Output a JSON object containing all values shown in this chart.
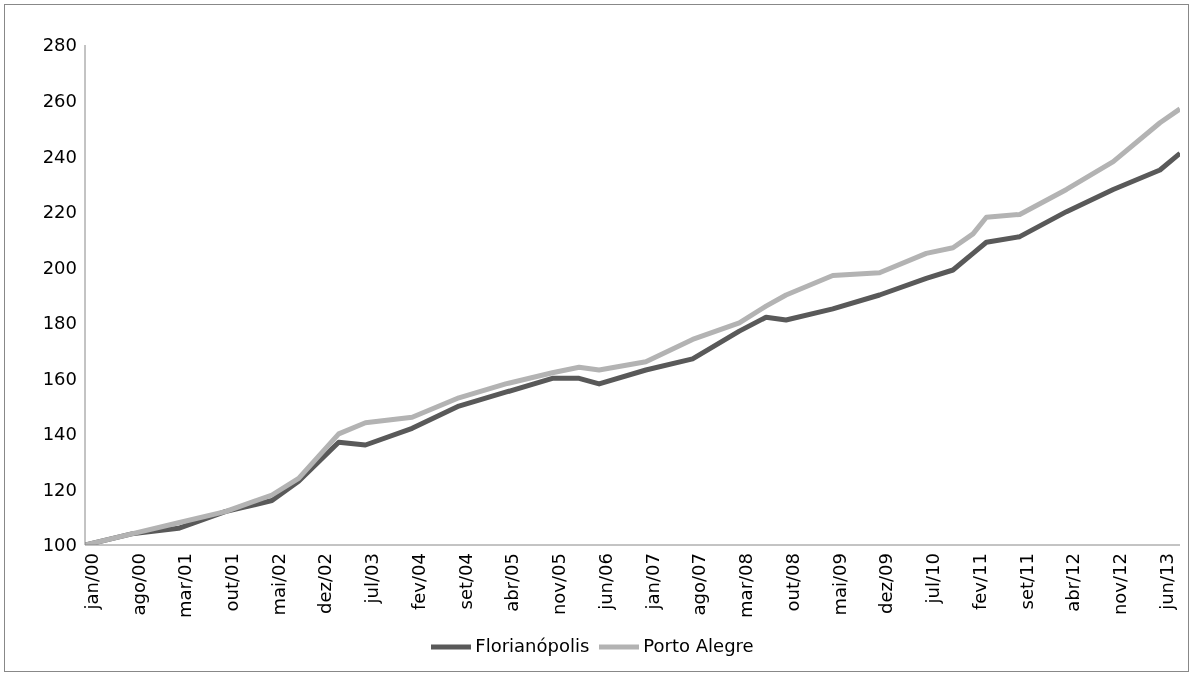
{
  "chart_data": {
    "type": "line",
    "x": [
      "2000-01",
      "2000-08",
      "2001-03",
      "2001-10",
      "2002-05",
      "2002-09",
      "2002-12",
      "2003-03",
      "2003-07",
      "2004-02",
      "2004-09",
      "2005-04",
      "2005-11",
      "2006-03",
      "2006-06",
      "2007-01",
      "2007-08",
      "2008-03",
      "2008-07",
      "2008-10",
      "2009-05",
      "2009-12",
      "2010-07",
      "2010-11",
      "2011-02",
      "2011-04",
      "2011-09",
      "2012-04",
      "2012-11",
      "2013-06",
      "2013-09"
    ],
    "series": [
      {
        "name": "Florianópolis",
        "color": "#595959",
        "values": [
          100,
          104,
          106,
          112,
          116,
          123,
          130,
          137,
          136,
          142,
          150,
          155,
          160,
          160,
          158,
          163,
          167,
          177,
          182,
          181,
          185,
          190,
          196,
          199,
          205,
          209,
          211,
          220,
          228,
          235,
          241
        ]
      },
      {
        "name": "Porto Alegre",
        "color": "#b3b3b3",
        "values": [
          100,
          104,
          108,
          112,
          118,
          124,
          132,
          140,
          144,
          146,
          153,
          158,
          162,
          164,
          163,
          166,
          174,
          180,
          186,
          190,
          197,
          198,
          205,
          207,
          212,
          218,
          219,
          228,
          238,
          252,
          257
        ]
      }
    ],
    "xlim": [
      "2000-01",
      "2013-09"
    ],
    "xticks": [
      {
        "value": "2000-01",
        "label": "jan/00"
      },
      {
        "value": "2000-08",
        "label": "ago/00"
      },
      {
        "value": "2001-03",
        "label": "mar/01"
      },
      {
        "value": "2001-10",
        "label": "out/01"
      },
      {
        "value": "2002-05",
        "label": "mai/02"
      },
      {
        "value": "2002-12",
        "label": "dez/02"
      },
      {
        "value": "2003-07",
        "label": "jul/03"
      },
      {
        "value": "2004-02",
        "label": "fev/04"
      },
      {
        "value": "2004-09",
        "label": "set/04"
      },
      {
        "value": "2005-04",
        "label": "abr/05"
      },
      {
        "value": "2005-11",
        "label": "nov/05"
      },
      {
        "value": "2006-06",
        "label": "jun/06"
      },
      {
        "value": "2007-01",
        "label": "jan/07"
      },
      {
        "value": "2007-08",
        "label": "ago/07"
      },
      {
        "value": "2008-03",
        "label": "mar/08"
      },
      {
        "value": "2008-10",
        "label": "out/08"
      },
      {
        "value": "2009-05",
        "label": "mai/09"
      },
      {
        "value": "2009-12",
        "label": "dez/09"
      },
      {
        "value": "2010-07",
        "label": "jul/10"
      },
      {
        "value": "2011-02",
        "label": "fev/11"
      },
      {
        "value": "2011-09",
        "label": "set/11"
      },
      {
        "value": "2012-04",
        "label": "abr/12"
      },
      {
        "value": "2012-11",
        "label": "nov/12"
      },
      {
        "value": "2013-06",
        "label": "jun/13"
      }
    ],
    "ylim": [
      100,
      280
    ],
    "yticks": [
      100,
      120,
      140,
      160,
      180,
      200,
      220,
      240,
      260,
      280
    ],
    "legend": "bottom",
    "marker": "none",
    "line_style": "solid"
  }
}
